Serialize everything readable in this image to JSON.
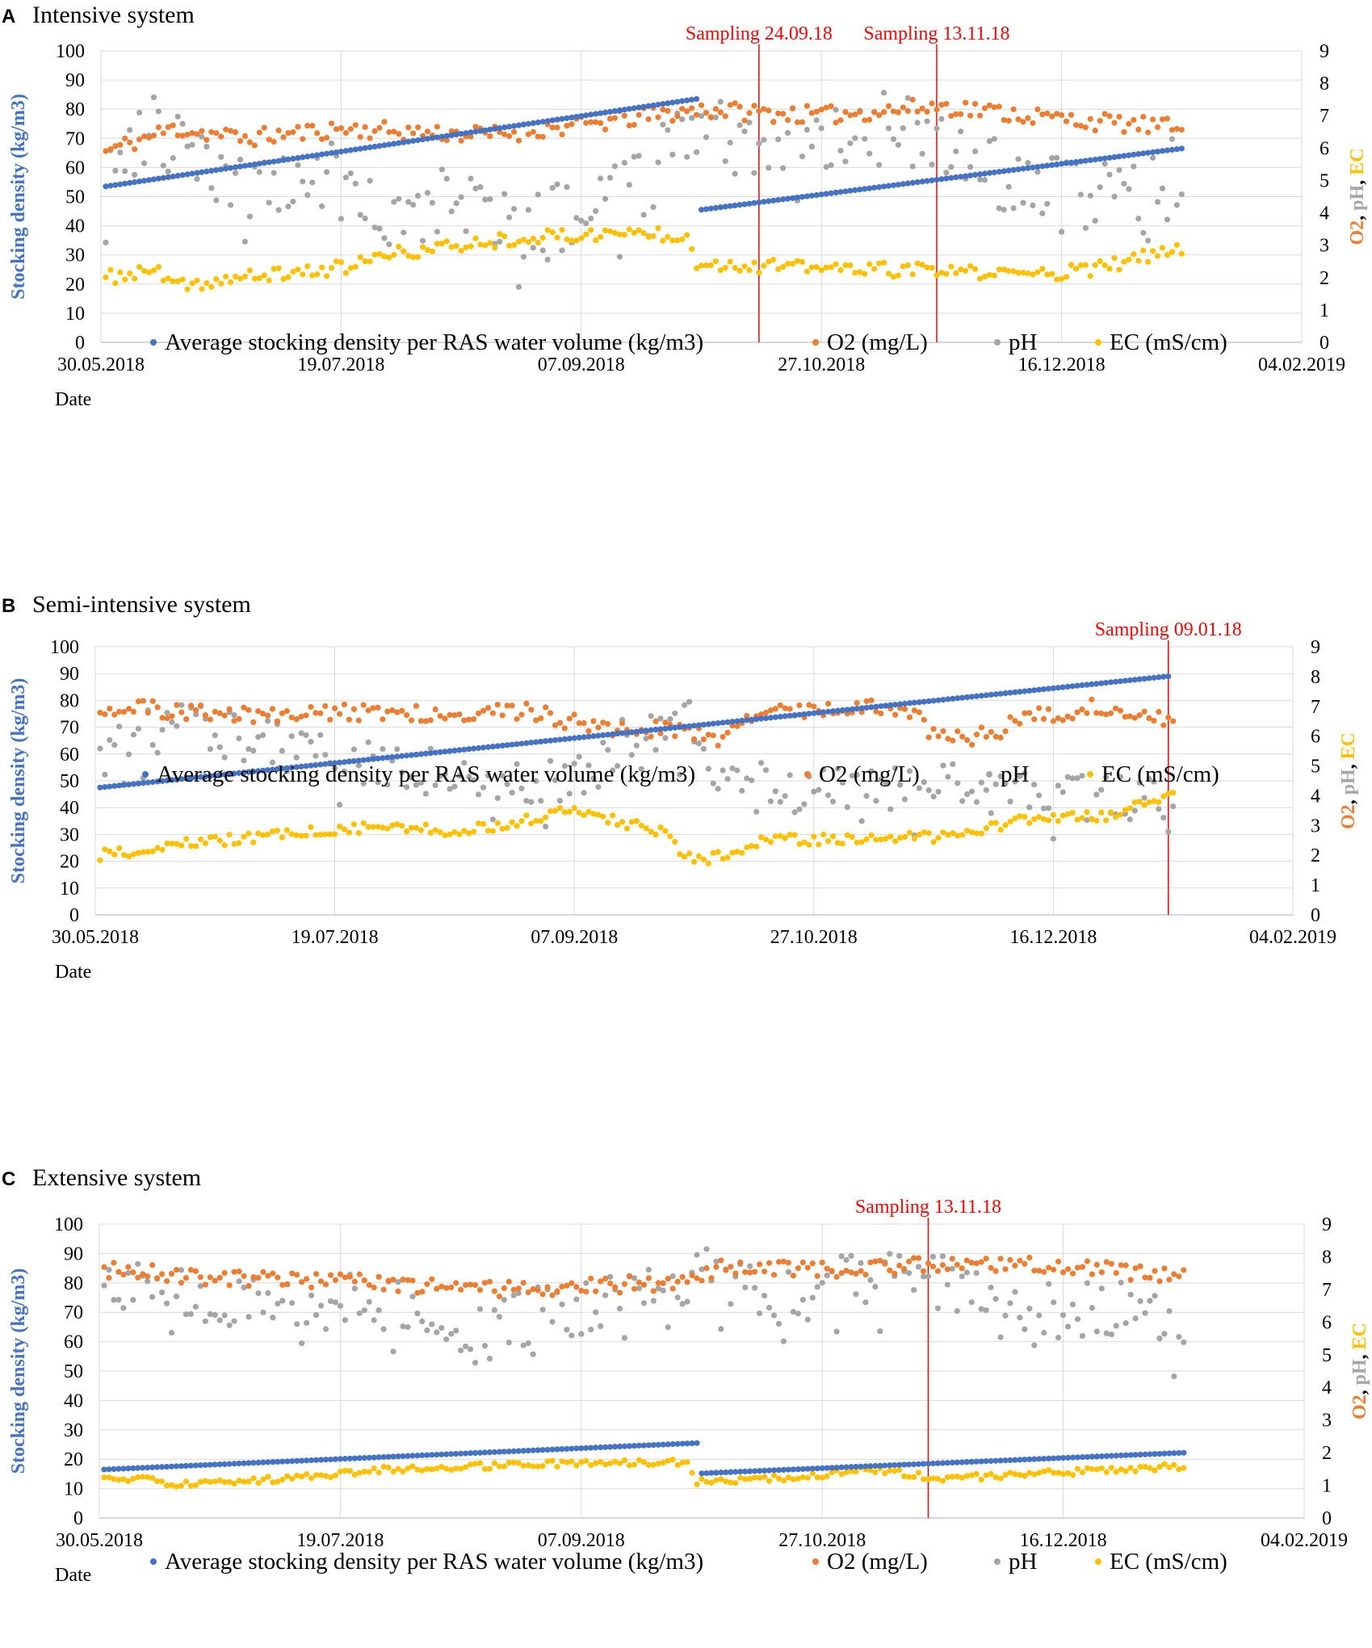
{
  "figure_colors": {
    "density": "#4472c4",
    "o2": "#ed7d31",
    "ph": "#a5a5a5",
    "ec": "#ffc000",
    "sampling": "#ff0000",
    "gridline": "#d9d9d9"
  },
  "chart_data": [
    {
      "type": "scatter",
      "panel": "A",
      "title": "Intensive system",
      "xlabel": "Date",
      "ylabel_left": "Stocking density (kg/m3)",
      "ylabel_right": [
        "O2",
        ", ",
        "pH",
        ", ",
        "EC"
      ],
      "ylim_left": [
        0,
        100
      ],
      "ylim_right": [
        0,
        9
      ],
      "left_ticks": [
        "0",
        "10",
        "20",
        "30",
        "40",
        "50",
        "60",
        "70",
        "80",
        "90",
        "100"
      ],
      "right_ticks": [
        "0",
        "1",
        "2",
        "3",
        "4",
        "5",
        "6",
        "7",
        "8",
        "9"
      ],
      "x_range": [
        0,
        250
      ],
      "x_ticks": [
        {
          "day": 0,
          "label": "30.05.2018"
        },
        {
          "day": 50,
          "label": "19.07.2018"
        },
        {
          "day": 100,
          "label": "07.09.2018"
        },
        {
          "day": 150,
          "label": "27.10.2018"
        },
        {
          "day": 200,
          "label": "16.12.2018"
        },
        {
          "day": 250,
          "label": "04.02.2019"
        }
      ],
      "sampling": [
        {
          "day": 137,
          "label": "Sampling 24.09.18"
        },
        {
          "day": 174,
          "label": "Sampling 13.11.18"
        }
      ],
      "series": [
        {
          "key": "density",
          "name": "Average stocking density per RAS water volume (kg/m3)",
          "axis": "left",
          "segments": [
            {
              "from": 1,
              "to": 124,
              "start": 53.5,
              "end": 83.5
            },
            {
              "from": 125,
              "to": 225,
              "start": 45.5,
              "end": 66.5
            }
          ]
        },
        {
          "key": "o2",
          "name": "O2 (mg/L)",
          "axis": "right",
          "knots": [
            [
              1,
              5.9
            ],
            [
              15,
              6.6
            ],
            [
              30,
              6.3
            ],
            [
              50,
              6.6
            ],
            [
              80,
              6.4
            ],
            [
              100,
              6.7
            ],
            [
              125,
              7.2
            ],
            [
              150,
              7.0
            ],
            [
              175,
              7.3
            ],
            [
              200,
              6.9
            ],
            [
              225,
              6.6
            ]
          ],
          "jitter": 0.28,
          "seed": 11
        },
        {
          "key": "ph",
          "name": "pH",
          "axis": "right",
          "knots": [
            [
              1,
              5.5
            ],
            [
              10,
              6.5
            ],
            [
              25,
              5.0
            ],
            [
              45,
              5.2
            ],
            [
              60,
              4.2
            ],
            [
              75,
              4.4
            ],
            [
              88,
              3.6
            ],
            [
              100,
              4.0
            ],
            [
              110,
              4.5
            ],
            [
              125,
              7.0
            ],
            [
              140,
              6.2
            ],
            [
              160,
              6.8
            ],
            [
              180,
              5.8
            ],
            [
              195,
              4.6
            ],
            [
              215,
              4.3
            ],
            [
              225,
              5.5
            ]
          ],
          "jitter": 1.2,
          "seed": 23
        },
        {
          "key": "ec",
          "name": "EC (mS/cm)",
          "axis": "right",
          "knots": [
            [
              1,
              2.0
            ],
            [
              12,
              2.2
            ],
            [
              15,
              1.7
            ],
            [
              30,
              2.0
            ],
            [
              50,
              2.3
            ],
            [
              60,
              2.7
            ],
            [
              75,
              3.0
            ],
            [
              85,
              3.2
            ],
            [
              112,
              3.4
            ],
            [
              122,
              3.3
            ],
            [
              124,
              2.5
            ],
            [
              130,
              2.4
            ],
            [
              150,
              2.3
            ],
            [
              175,
              2.2
            ],
            [
              190,
              2.1
            ],
            [
              205,
              2.2
            ],
            [
              225,
              2.9
            ]
          ],
          "jitter": 0.22,
          "seed": 37
        }
      ],
      "legend": {
        "labels": [
          "Average stocking density per RAS water volume (kg/m3)",
          "O2 (mg/L)",
          "pH",
          "EC (mS/cm)"
        ]
      }
    },
    {
      "type": "scatter",
      "panel": "B",
      "title": "Semi-intensive system",
      "xlabel": "Date",
      "ylabel_left": "Stocking density (kg/m3)",
      "ylabel_right": [
        "O2",
        ", ",
        "pH",
        ", ",
        "EC"
      ],
      "ylim_left": [
        0,
        100
      ],
      "ylim_right": [
        0,
        9
      ],
      "left_ticks": [
        "0",
        "10",
        "20",
        "30",
        "40",
        "50",
        "60",
        "70",
        "80",
        "90",
        "100"
      ],
      "right_ticks": [
        "0",
        "1",
        "2",
        "3",
        "4",
        "5",
        "6",
        "7",
        "8",
        "9"
      ],
      "x_range": [
        0,
        250
      ],
      "x_ticks": [
        {
          "day": 0,
          "label": "30.05.2018"
        },
        {
          "day": 50,
          "label": "19.07.2018"
        },
        {
          "day": 100,
          "label": "07.09.2018"
        },
        {
          "day": 150,
          "label": "27.10.2018"
        },
        {
          "day": 200,
          "label": "16.12.2018"
        },
        {
          "day": 250,
          "label": "04.02.2019"
        }
      ],
      "sampling": [
        {
          "day": 224,
          "label": "Sampling 09.01.18"
        }
      ],
      "series": [
        {
          "key": "density",
          "name": "Average stocking density per RAS water volume (kg/m3)",
          "axis": "left",
          "segments": [
            {
              "from": 1,
              "to": 224,
              "start": 47.5,
              "end": 89.0
            }
          ]
        },
        {
          "key": "o2",
          "name": "O2 (mg/L)",
          "axis": "right",
          "knots": [
            [
              1,
              7.0
            ],
            [
              30,
              6.7
            ],
            [
              60,
              6.8
            ],
            [
              90,
              6.8
            ],
            [
              110,
              6.2
            ],
            [
              125,
              6.2
            ],
            [
              130,
              5.9
            ],
            [
              140,
              6.8
            ],
            [
              155,
              7.0
            ],
            [
              170,
              6.9
            ],
            [
              175,
              6.0
            ],
            [
              185,
              6.0
            ],
            [
              195,
              6.6
            ],
            [
              210,
              7.0
            ],
            [
              225,
              6.5
            ]
          ],
          "jitter": 0.3,
          "seed": 51
        },
        {
          "key": "ph",
          "name": "pH",
          "axis": "right",
          "knots": [
            [
              1,
              6.0
            ],
            [
              20,
              6.3
            ],
            [
              45,
              5.5
            ],
            [
              70,
              4.8
            ],
            [
              90,
              4.4
            ],
            [
              100,
              4.9
            ],
            [
              115,
              6.2
            ],
            [
              125,
              6.5
            ],
            [
              130,
              4.5
            ],
            [
              150,
              4.2
            ],
            [
              175,
              4.4
            ],
            [
              195,
              4.0
            ],
            [
              225,
              3.8
            ]
          ],
          "jitter": 0.8,
          "seed": 63
        },
        {
          "key": "ec",
          "name": "EC (mS/cm)",
          "axis": "right",
          "knots": [
            [
              1,
              2.0
            ],
            [
              20,
              2.4
            ],
            [
              40,
              2.7
            ],
            [
              60,
              3.0
            ],
            [
              77,
              2.8
            ],
            [
              100,
              3.5
            ],
            [
              105,
              3.3
            ],
            [
              120,
              2.7
            ],
            [
              122,
              2.0
            ],
            [
              128,
              1.9
            ],
            [
              140,
              2.5
            ],
            [
              175,
              2.6
            ],
            [
              195,
              3.2
            ],
            [
              210,
              3.3
            ],
            [
              225,
              4.0
            ]
          ],
          "jitter": 0.18,
          "seed": 79
        }
      ],
      "legend": {
        "labels": [
          "Average stocking density per RAS water volume (kg/m3)",
          "O2 (mg/L)",
          "pH",
          "EC (mS/cm)"
        ]
      }
    },
    {
      "type": "scatter",
      "panel": "C",
      "title": "Extensive system",
      "xlabel": "Date",
      "ylabel_left": "Stocking density (kg/m3)",
      "ylabel_right": [
        "O2",
        ", ",
        "pH",
        ", ",
        "EC"
      ],
      "ylim_left": [
        0,
        100
      ],
      "ylim_right": [
        0,
        9
      ],
      "left_ticks": [
        "0",
        "10",
        "20",
        "30",
        "40",
        "50",
        "60",
        "70",
        "80",
        "90",
        "100"
      ],
      "right_ticks": [
        "0",
        "1",
        "2",
        "3",
        "4",
        "5",
        "6",
        "7",
        "8",
        "9"
      ],
      "x_range": [
        0,
        250
      ],
      "x_ticks": [
        {
          "day": 0,
          "label": "30.05.2018"
        },
        {
          "day": 50,
          "label": "19.07.2018"
        },
        {
          "day": 100,
          "label": "07.09.2018"
        },
        {
          "day": 150,
          "label": "27.10.2018"
        },
        {
          "day": 200,
          "label": "16.12.2018"
        },
        {
          "day": 250,
          "label": "04.02.2019"
        }
      ],
      "sampling": [
        {
          "day": 172,
          "label": "Sampling 13.11.18"
        }
      ],
      "series": [
        {
          "key": "density",
          "name": "Average stocking density per RAS water volume (kg/m3)",
          "axis": "left",
          "segments": [
            {
              "from": 1,
              "to": 124,
              "start": 16.5,
              "end": 25.5
            },
            {
              "from": 125,
              "to": 225,
              "start": 15.2,
              "end": 22.2
            }
          ]
        },
        {
          "key": "o2",
          "name": "O2 (mg/L)",
          "axis": "right",
          "knots": [
            [
              1,
              7.6
            ],
            [
              30,
              7.3
            ],
            [
              60,
              7.2
            ],
            [
              80,
              7.0
            ],
            [
              100,
              7.1
            ],
            [
              120,
              7.2
            ],
            [
              130,
              7.7
            ],
            [
              150,
              7.6
            ],
            [
              175,
              7.8
            ],
            [
              200,
              7.7
            ],
            [
              225,
              7.4
            ]
          ],
          "jitter": 0.25,
          "seed": 91
        },
        {
          "key": "ph",
          "name": "pH",
          "axis": "right",
          "knots": [
            [
              1,
              7.0
            ],
            [
              15,
              7.0
            ],
            [
              30,
              6.5
            ],
            [
              60,
              6.7
            ],
            [
              80,
              5.5
            ],
            [
              90,
              6.2
            ],
            [
              100,
              6.5
            ],
            [
              125,
              7.5
            ],
            [
              140,
              6.6
            ],
            [
              160,
              7.4
            ],
            [
              175,
              7.3
            ],
            [
              190,
              6.2
            ],
            [
              210,
              6.5
            ],
            [
              225,
              6.0
            ]
          ],
          "jitter": 0.9,
          "seed": 97
        },
        {
          "key": "ec",
          "name": "EC (mS/cm)",
          "axis": "right",
          "knots": [
            [
              1,
              1.2
            ],
            [
              10,
              1.2
            ],
            [
              15,
              1.0
            ],
            [
              30,
              1.1
            ],
            [
              60,
              1.5
            ],
            [
              80,
              1.6
            ],
            [
              105,
              1.7
            ],
            [
              122,
              1.7
            ],
            [
              124,
              1.1
            ],
            [
              150,
              1.3
            ],
            [
              160,
              1.5
            ],
            [
              175,
              1.2
            ],
            [
              200,
              1.4
            ],
            [
              225,
              1.6
            ]
          ],
          "jitter": 0.1,
          "seed": 113
        }
      ],
      "legend": {
        "labels": [
          "Average stocking density per RAS water volume (kg/m3)",
          "O2 (mg/L)",
          "pH",
          "EC (mS/cm)"
        ]
      }
    }
  ]
}
